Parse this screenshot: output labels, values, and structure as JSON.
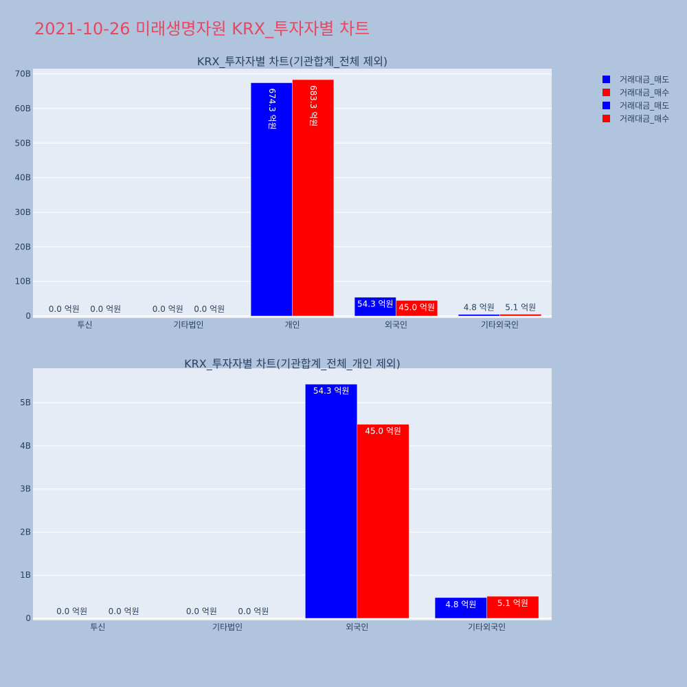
{
  "page_title": "2021-10-26 미래생명자원 KRX_투자자별 차트",
  "colors": {
    "sell": "#0000ff",
    "buy": "#ff0000"
  },
  "legend": [
    {
      "label": "거래대금_매도",
      "color": "#0000ff"
    },
    {
      "label": "거래대금_매수",
      "color": "#ff0000"
    },
    {
      "label": "거래대금_매도",
      "color": "#0000ff"
    },
    {
      "label": "거래대금_매수",
      "color": "#ff0000"
    }
  ],
  "chart_data": [
    {
      "type": "bar",
      "title": "KRX_투자자별 차트(기관합계_전체 제외)",
      "categories": [
        "투신",
        "기타법인",
        "개인",
        "외국인",
        "기타외국인"
      ],
      "series": [
        {
          "name": "거래대금_매도",
          "color": "#0000ff",
          "values": [
            0,
            0,
            67430000000,
            5430000000,
            480000000
          ],
          "labels": [
            "0.0 억원",
            "0.0 억원",
            "674.3 억원",
            "54.3 억원",
            "4.8 억원"
          ]
        },
        {
          "name": "거래대금_매수",
          "color": "#ff0000",
          "values": [
            0,
            0,
            68330000000,
            4500000000,
            510000000
          ],
          "labels": [
            "0.0 억원",
            "0.0 억원",
            "683.3 억원",
            "45.0 억원",
            "5.1 억원"
          ]
        }
      ],
      "ylim": [
        0,
        71500000000
      ],
      "yticks": [
        0,
        10000000000,
        20000000000,
        30000000000,
        40000000000,
        50000000000,
        60000000000,
        70000000000
      ],
      "yticklabels": [
        "0",
        "10B",
        "20B",
        "30B",
        "40B",
        "50B",
        "60B",
        "70B"
      ],
      "grid": true
    },
    {
      "type": "bar",
      "title": "KRX_투자자별 차트(기관합계_전체_개인 제외)",
      "categories": [
        "투신",
        "기타법인",
        "외국인",
        "기타외국인"
      ],
      "series": [
        {
          "name": "거래대금_매도",
          "color": "#0000ff",
          "values": [
            0,
            0,
            5430000000,
            480000000
          ],
          "labels": [
            "0.0 억원",
            "0.0 억원",
            "54.3 억원",
            "4.8 억원"
          ]
        },
        {
          "name": "거래대금_매수",
          "color": "#ff0000",
          "values": [
            0,
            0,
            4500000000,
            510000000
          ],
          "labels": [
            "0.0 억원",
            "0.0 억원",
            "45.0 억원",
            "5.1 억원"
          ]
        }
      ],
      "ylim": [
        0,
        5800000000
      ],
      "yticks": [
        0,
        1000000000,
        2000000000,
        3000000000,
        4000000000,
        5000000000
      ],
      "yticklabels": [
        "0",
        "1B",
        "2B",
        "3B",
        "4B",
        "5B"
      ],
      "grid": true
    }
  ]
}
